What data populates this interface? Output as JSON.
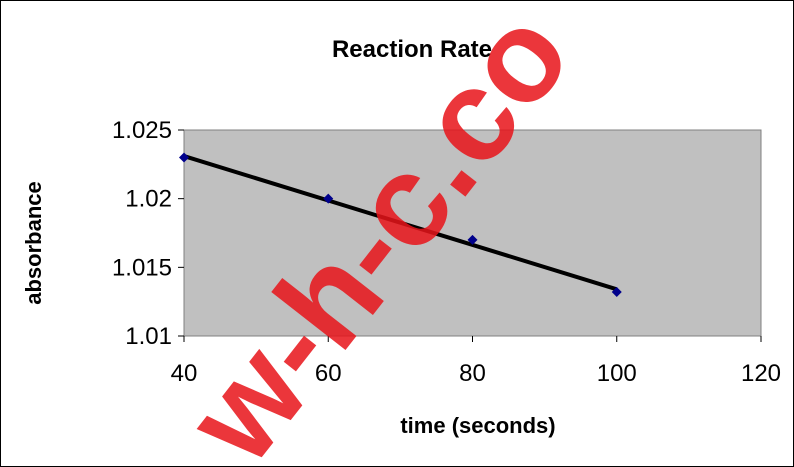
{
  "chart_data": {
    "type": "scatter",
    "title": "Reaction Rate",
    "xlabel": "time (seconds)",
    "ylabel": "absorbance",
    "xlim": [
      40,
      120
    ],
    "ylim": [
      1.01,
      1.025
    ],
    "xticks": [
      "40",
      "60",
      "80",
      "100",
      "120"
    ],
    "yticks": [
      "1.01",
      "1.015",
      "1.02",
      "1.025"
    ],
    "series": [
      {
        "x": [
          40,
          60,
          80,
          100
        ],
        "y": [
          1.023,
          1.02,
          1.017,
          1.0132
        ],
        "marker": "diamond",
        "color": "#00008b"
      }
    ],
    "trendline": {
      "type": "linear",
      "x": [
        40,
        100
      ],
      "y": [
        1.0231,
        1.0134
      ],
      "color": "#000000"
    },
    "plot_background": "#c0c0c0",
    "grid": false,
    "legend": "none"
  },
  "watermark": {
    "text": "w-h-c.co",
    "color": "#e8141a"
  }
}
